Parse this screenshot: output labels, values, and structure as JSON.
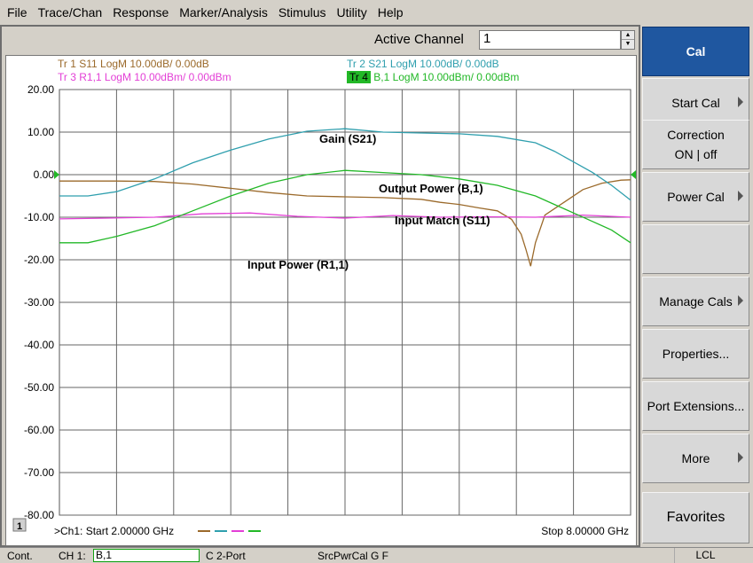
{
  "menu": [
    "File",
    "Trace/Chan",
    "Response",
    "Marker/Analysis",
    "Stimulus",
    "Utility",
    "Help"
  ],
  "active_channel": {
    "label": "Active Channel",
    "value": "1"
  },
  "traces": [
    {
      "id": "Tr 1",
      "text": "S11 LogM 10.00dB/  0.00dB",
      "color": "#9b6a2b",
      "active": false
    },
    {
      "id": "Tr 2",
      "text": "S21 LogM 10.00dB/  0.00dB",
      "color": "#2f9fae",
      "active": false
    },
    {
      "id": "Tr 3",
      "text": "R1,1 LogM 10.00dBm/  0.00dBm",
      "color": "#e33fd6",
      "active": false
    },
    {
      "id": "Tr 4",
      "text": "B,1 LogM 10.00dBm/  0.00dBm",
      "color": "#22b827",
      "active": true
    }
  ],
  "annotations": {
    "gain": "Gain (S21)",
    "output_power": "Output Power (B,1)",
    "input_match": "Input Match (S11)",
    "input_power": "Input Power (R1,1)"
  },
  "chart_data": {
    "type": "line",
    "x_unit": "GHz",
    "xlim": [
      2.0,
      8.0
    ],
    "ylim": [
      -80,
      20
    ],
    "ytick_labels": [
      "20.00",
      "10.00",
      "0.00",
      "-10.00",
      "-20.00",
      "-30.00",
      "-40.00",
      "-50.00",
      "-60.00",
      "-70.00",
      "-80.00"
    ],
    "ytick_values": [
      20,
      10,
      0,
      -10,
      -20,
      -30,
      -40,
      -50,
      -60,
      -70,
      -80
    ],
    "x_divisions": 10,
    "grid": true,
    "reference_level": 0.0,
    "series": [
      {
        "name": "S11",
        "color": "#9b6a2b",
        "x": [
          2.0,
          2.3,
          2.6,
          3.0,
          3.4,
          3.8,
          4.2,
          4.6,
          5.0,
          5.4,
          5.8,
          6.0,
          6.2,
          6.4,
          6.6,
          6.75,
          6.85,
          6.9,
          6.95,
          7.0,
          7.1,
          7.3,
          7.5,
          7.7,
          7.9,
          8.0
        ],
        "y": [
          -1.5,
          -1.5,
          -1.5,
          -1.6,
          -2.2,
          -3.2,
          -4.2,
          -5.0,
          -5.2,
          -5.4,
          -5.8,
          -6.5,
          -7.0,
          -7.8,
          -8.5,
          -10.5,
          -14.0,
          -17.5,
          -21.5,
          -16.0,
          -9.5,
          -6.5,
          -3.5,
          -2.0,
          -1.3,
          -1.2
        ]
      },
      {
        "name": "S21",
        "color": "#2f9fae",
        "x": [
          2.0,
          2.3,
          2.6,
          3.0,
          3.4,
          3.8,
          4.2,
          4.6,
          5.0,
          5.4,
          5.8,
          6.2,
          6.6,
          7.0,
          7.2,
          7.4,
          7.6,
          7.8,
          8.0
        ],
        "y": [
          -5.0,
          -5.0,
          -4.0,
          -1.0,
          2.8,
          5.8,
          8.4,
          10.2,
          10.8,
          10.0,
          9.8,
          9.6,
          9.0,
          7.5,
          5.5,
          3.0,
          0.5,
          -2.5,
          -6.0
        ]
      },
      {
        "name": "R1,1",
        "color": "#e33fd6",
        "x": [
          2.0,
          2.5,
          3.0,
          3.5,
          4.0,
          4.5,
          5.0,
          5.5,
          6.0,
          6.5,
          7.0,
          7.5,
          8.0
        ],
        "y": [
          -10.4,
          -10.2,
          -10.0,
          -9.2,
          -9.0,
          -9.8,
          -10.2,
          -9.6,
          -10.0,
          -9.9,
          -10.0,
          -9.5,
          -10.0
        ]
      },
      {
        "name": "B,1",
        "color": "#22b827",
        "x": [
          2.0,
          2.3,
          2.6,
          3.0,
          3.4,
          3.8,
          4.2,
          4.6,
          5.0,
          5.4,
          5.8,
          6.2,
          6.6,
          7.0,
          7.2,
          7.4,
          7.6,
          7.8,
          8.0
        ],
        "y": [
          -16.0,
          -16.0,
          -14.5,
          -12.0,
          -8.5,
          -5.0,
          -2.0,
          0.0,
          1.0,
          0.5,
          0.0,
          -1.0,
          -2.5,
          -5.0,
          -7.0,
          -9.0,
          -11.0,
          -13.0,
          -16.0
        ]
      }
    ],
    "start_label": ">Ch1: Start  2.00000 GHz",
    "stop_label": "Stop  8.00000 GHz",
    "channel_number": "1"
  },
  "softkeys": {
    "title": "Cal",
    "items": [
      {
        "label": "Start Cal",
        "arrow": true
      },
      {
        "label_line1": "Correction",
        "label_line2": "ON | off",
        "arrow": false
      },
      {
        "label": "Power Cal",
        "arrow": true
      },
      {
        "label": "",
        "arrow": false
      },
      {
        "label": "Manage Cals",
        "arrow": true
      },
      {
        "label": "Properties...",
        "arrow": false
      },
      {
        "label": "Port Extensions...",
        "arrow": false
      },
      {
        "label": "More",
        "arrow": true
      }
    ],
    "favorites": "Favorites"
  },
  "status": {
    "mode": "Cont.",
    "channel": "CH 1:",
    "trace": "B,1",
    "port_mode": "C  2-Port",
    "source": "SrcPwrCal G F",
    "remote": "LCL"
  }
}
